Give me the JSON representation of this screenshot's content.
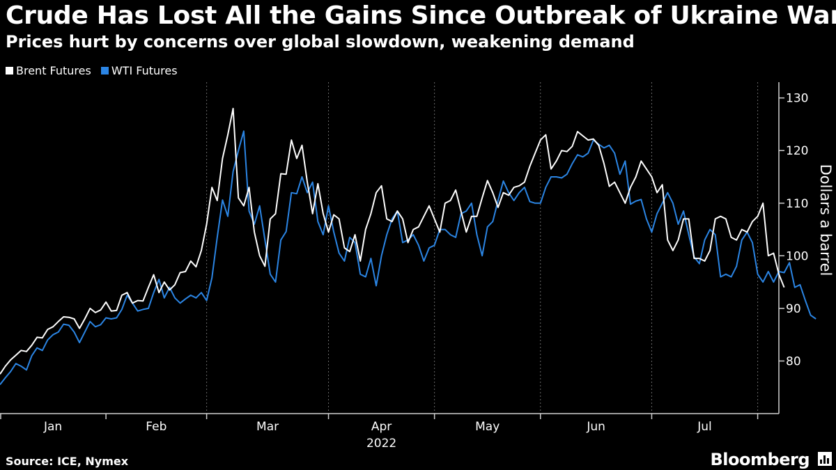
{
  "header": {
    "title": "Crude Has Lost All the Gains Since Outbreak of Ukraine War",
    "subtitle": "Prices hurt by concerns over global slowdown, weakening demand"
  },
  "legend": [
    {
      "label": "Brent Futures",
      "color": "#ffffff"
    },
    {
      "label": "WTI Futures",
      "color": "#2b85e4"
    }
  ],
  "footer": {
    "source": "Source: ICE, Nymex",
    "brand": "Bloomberg",
    "brand_icon": "bloomberg-chart-icon"
  },
  "chart_data": {
    "type": "line",
    "title": "Crude Has Lost All the Gains Since Outbreak of Ukraine War",
    "subtitle": "Prices hurt by concerns over global slowdown, weakening demand",
    "xlabel": "2022",
    "ylabel": "Dollars a barrel",
    "x_tick_labels": [
      "Jan",
      "Feb",
      "Mar",
      "Apr",
      "May",
      "Jun",
      "Jul"
    ],
    "x_year_label": "2022",
    "yticks": [
      80,
      90,
      100,
      110,
      120,
      130
    ],
    "ylim": [
      70,
      133
    ],
    "x_unit": "trading day index (0 = Jan 3, 2022)",
    "xlim": [
      0,
      147
    ],
    "month_boundaries": [
      20,
      39,
      62,
      82,
      102,
      123,
      143
    ],
    "grid": "vertical dashed at month boundaries",
    "legend_position": "top-left",
    "series": [
      {
        "name": "Brent Futures",
        "color": "#ffffff",
        "values": [
          77.5,
          79,
          80.2,
          81.1,
          82,
          81.8,
          83,
          84.5,
          84.4,
          86,
          86.5,
          87.5,
          88.4,
          88.3,
          88,
          86.2,
          88,
          90,
          89.2,
          89.7,
          91.2,
          89.5,
          89.6,
          92.5,
          93,
          91,
          91.5,
          91.4,
          94,
          96.4,
          93,
          95,
          93.5,
          94.5,
          96.8,
          97,
          99,
          97.9,
          101,
          106,
          113,
          110.5,
          118.5,
          123,
          128,
          111,
          109.5,
          113,
          104.5,
          100,
          98,
          107,
          108,
          115.6,
          115.5,
          122,
          118.5,
          121,
          114,
          108,
          113.7,
          108,
          104.5,
          107.8,
          107,
          101.5,
          100.8,
          104,
          99,
          105,
          108,
          112,
          113.3,
          107,
          106.5,
          108.5,
          107,
          102.5,
          105,
          105.5,
          107.5,
          109.5,
          107,
          104.5,
          110,
          110.5,
          112.5,
          108.5,
          104.5,
          107.5,
          107.5,
          111,
          114.3,
          112,
          109.2,
          112,
          111.5,
          113,
          113.3,
          114,
          117,
          119.5,
          122,
          123,
          116.5,
          118,
          120,
          119.8,
          120.8,
          123.6,
          122.8,
          122,
          122.2,
          121,
          117.5,
          113.2,
          114,
          112,
          110,
          113,
          115,
          118,
          116.5,
          115,
          112,
          113.5,
          103,
          101,
          103,
          107,
          107,
          99.5,
          99.5,
          99,
          101,
          107,
          107.5,
          107,
          103.5,
          103,
          105,
          104.5,
          106.5,
          107.5,
          110,
          100,
          100.5,
          96.5,
          94
        ]
      },
      {
        "name": "WTI Futures",
        "color": "#2b85e4",
        "values": [
          75.5,
          76.8,
          78,
          79.5,
          79,
          78.3,
          81,
          82.5,
          82,
          84,
          85,
          85.5,
          87,
          86.8,
          85.5,
          83.5,
          85.5,
          87.5,
          86.5,
          86.9,
          88.2,
          88,
          88.2,
          89.8,
          92.5,
          91,
          89.5,
          89.8,
          90,
          93,
          95.5,
          92,
          94,
          92,
          91,
          91.8,
          92.5,
          92,
          93,
          91.5,
          95.8,
          103.5,
          110.6,
          107.5,
          116,
          120,
          123.7,
          108.5,
          106,
          109.5,
          103,
          96.5,
          95,
          103,
          104.6,
          112,
          111.8,
          115,
          112,
          114,
          106.5,
          104,
          109.5,
          104.5,
          100.5,
          99,
          103.5,
          102.5,
          96.5,
          96,
          99.5,
          94.3,
          100,
          104,
          107,
          108.5,
          102.5,
          103,
          104,
          102,
          99,
          101.5,
          102,
          105,
          105,
          104,
          103.5,
          108,
          108.5,
          110,
          104,
          100,
          105.5,
          106.5,
          110.5,
          114.2,
          112,
          110.5,
          112,
          113,
          110.3,
          110,
          110,
          113,
          115,
          115,
          114.8,
          115.5,
          117.5,
          119.2,
          118.8,
          119.5,
          122,
          121.2,
          120.5,
          121,
          119.5,
          115.5,
          118,
          109.8,
          110.4,
          110.7,
          107,
          104.5,
          108,
          110,
          112,
          110,
          106,
          108.5,
          104,
          99.8,
          98.5,
          103,
          105,
          104,
          96,
          96.5,
          96,
          98,
          103,
          104.5,
          102.5,
          96.5,
          95,
          97,
          95,
          97,
          96.8,
          98.7,
          94,
          94.5,
          91.5,
          88.7,
          88
        ]
      }
    ]
  }
}
